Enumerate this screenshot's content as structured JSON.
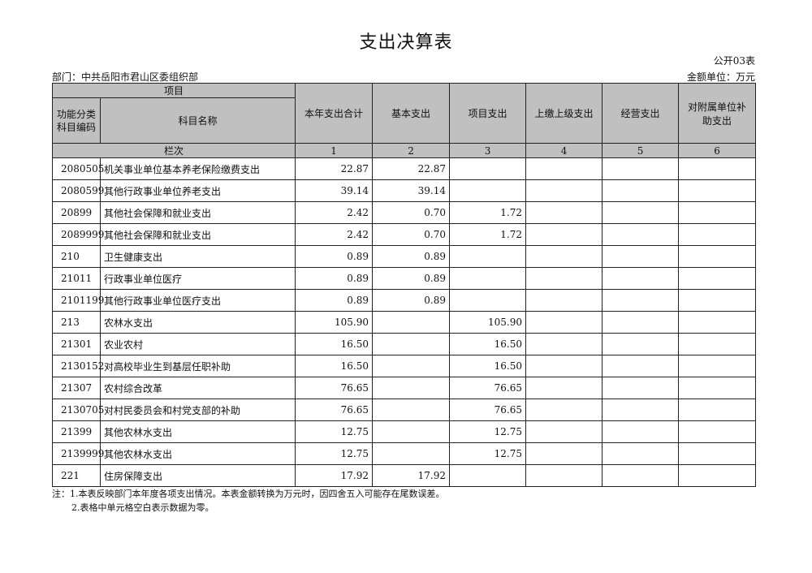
{
  "title": "支出决算表",
  "table_no": "公开03表",
  "department": "部门：中共岳阳市君山区委组织部",
  "unit": "金额单位：万元",
  "header": {
    "item": "项目",
    "code": "功能分类科目编码",
    "name": "科目名称",
    "columns": [
      "本年支出合计",
      "基本支出",
      "项目支出",
      "上缴上级支出",
      "经营支出",
      "对附属单位补助支出"
    ],
    "row_index_label": "栏次",
    "column_numbers": [
      "1",
      "2",
      "3",
      "4",
      "5",
      "6"
    ]
  },
  "rows": [
    {
      "code": "2080505",
      "name": "机关事业单位基本养老保险缴费支出",
      "values": [
        "22.87",
        "22.87",
        "",
        "",
        "",
        ""
      ]
    },
    {
      "code": "2080599",
      "name": "其他行政事业单位养老支出",
      "values": [
        "39.14",
        "39.14",
        "",
        "",
        "",
        ""
      ]
    },
    {
      "code": "20899",
      "name": "其他社会保障和就业支出",
      "values": [
        "2.42",
        "0.70",
        "1.72",
        "",
        "",
        ""
      ]
    },
    {
      "code": "2089999",
      "name": "其他社会保障和就业支出",
      "values": [
        "2.42",
        "0.70",
        "1.72",
        "",
        "",
        ""
      ]
    },
    {
      "code": "210",
      "name": "卫生健康支出",
      "values": [
        "0.89",
        "0.89",
        "",
        "",
        "",
        ""
      ]
    },
    {
      "code": "21011",
      "name": "行政事业单位医疗",
      "values": [
        "0.89",
        "0.89",
        "",
        "",
        "",
        ""
      ]
    },
    {
      "code": "2101199",
      "name": "其他行政事业单位医疗支出",
      "values": [
        "0.89",
        "0.89",
        "",
        "",
        "",
        ""
      ]
    },
    {
      "code": "213",
      "name": "农林水支出",
      "values": [
        "105.90",
        "",
        "105.90",
        "",
        "",
        ""
      ]
    },
    {
      "code": "21301",
      "name": "农业农村",
      "values": [
        "16.50",
        "",
        "16.50",
        "",
        "",
        ""
      ]
    },
    {
      "code": "2130152",
      "name": "对高校毕业生到基层任职补助",
      "values": [
        "16.50",
        "",
        "16.50",
        "",
        "",
        ""
      ]
    },
    {
      "code": "21307",
      "name": "农村综合改革",
      "values": [
        "76.65",
        "",
        "76.65",
        "",
        "",
        ""
      ]
    },
    {
      "code": "2130705",
      "name": "对村民委员会和村党支部的补助",
      "values": [
        "76.65",
        "",
        "76.65",
        "",
        "",
        ""
      ]
    },
    {
      "code": "21399",
      "name": "其他农林水支出",
      "values": [
        "12.75",
        "",
        "12.75",
        "",
        "",
        ""
      ]
    },
    {
      "code": "2139999",
      "name": "其他农林水支出",
      "values": [
        "12.75",
        "",
        "12.75",
        "",
        "",
        ""
      ]
    },
    {
      "code": "221",
      "name": "住房保障支出",
      "values": [
        "17.92",
        "17.92",
        "",
        "",
        "",
        ""
      ]
    }
  ],
  "notes": [
    "注：1.本表反映部门本年度各项支出情况。本表金额转换为万元时，因四舍五入可能存在尾数误差。",
    "2.表格中单元格空白表示数据为零。"
  ]
}
